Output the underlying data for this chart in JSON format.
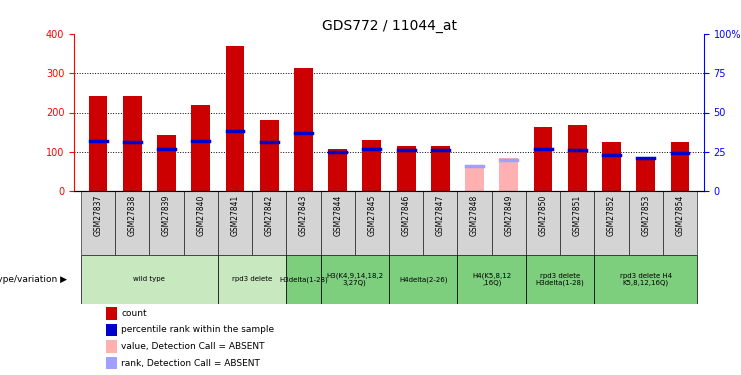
{
  "title": "GDS772 / 11044_at",
  "samples": [
    "GSM27837",
    "GSM27838",
    "GSM27839",
    "GSM27840",
    "GSM27841",
    "GSM27842",
    "GSM27843",
    "GSM27844",
    "GSM27845",
    "GSM27846",
    "GSM27847",
    "GSM27848",
    "GSM27849",
    "GSM27850",
    "GSM27851",
    "GSM27852",
    "GSM27853",
    "GSM27854"
  ],
  "counts": [
    242,
    242,
    143,
    218,
    368,
    182,
    313,
    107,
    130,
    115,
    115,
    0,
    0,
    163,
    168,
    124,
    88,
    125
  ],
  "percentile_ranks": [
    32,
    31,
    27,
    32,
    38,
    31,
    37,
    25,
    27,
    26,
    26,
    0,
    24,
    27,
    26,
    23,
    21,
    24
  ],
  "absent_counts": [
    0,
    0,
    0,
    0,
    0,
    0,
    0,
    0,
    0,
    0,
    0,
    60,
    85,
    0,
    0,
    0,
    0,
    0
  ],
  "absent_ranks": [
    0,
    0,
    0,
    0,
    0,
    0,
    0,
    0,
    0,
    0,
    0,
    16,
    20,
    0,
    0,
    0,
    0,
    0
  ],
  "is_absent": [
    false,
    false,
    false,
    false,
    false,
    false,
    false,
    false,
    false,
    false,
    false,
    true,
    true,
    false,
    false,
    false,
    false,
    false
  ],
  "genotype_groups": [
    {
      "label": "wild type",
      "start": 0,
      "end": 4,
      "color": "#c8e8c0"
    },
    {
      "label": "rpd3 delete",
      "start": 4,
      "end": 6,
      "color": "#c8e8c0"
    },
    {
      "label": "H3delta(1-28)",
      "start": 6,
      "end": 7,
      "color": "#7dce7d"
    },
    {
      "label": "H3(K4,9,14,18,2\n3,27Q)",
      "start": 7,
      "end": 9,
      "color": "#7dce7d"
    },
    {
      "label": "H4delta(2-26)",
      "start": 9,
      "end": 11,
      "color": "#7dce7d"
    },
    {
      "label": "H4(K5,8,12\n,16Q)",
      "start": 11,
      "end": 13,
      "color": "#7dce7d"
    },
    {
      "label": "rpd3 delete\nH3delta(1-28)",
      "start": 13,
      "end": 15,
      "color": "#7dce7d"
    },
    {
      "label": "rpd3 delete H4\nK5,8,12,16Q)",
      "start": 15,
      "end": 18,
      "color": "#7dce7d"
    }
  ],
  "ylim_left": [
    0,
    400
  ],
  "ylim_right": [
    0,
    100
  ],
  "yticks_left": [
    0,
    100,
    200,
    300,
    400
  ],
  "yticks_right": [
    0,
    25,
    50,
    75,
    100
  ],
  "bar_color": "#cc0000",
  "percentile_color": "#0000cc",
  "absent_bar_color": "#ffb0b0",
  "absent_rank_color": "#a0a0ff",
  "grid_color": "black",
  "background_color": "#ffffff",
  "sample_bg_color": "#d4d4d4",
  "bar_width": 0.55
}
